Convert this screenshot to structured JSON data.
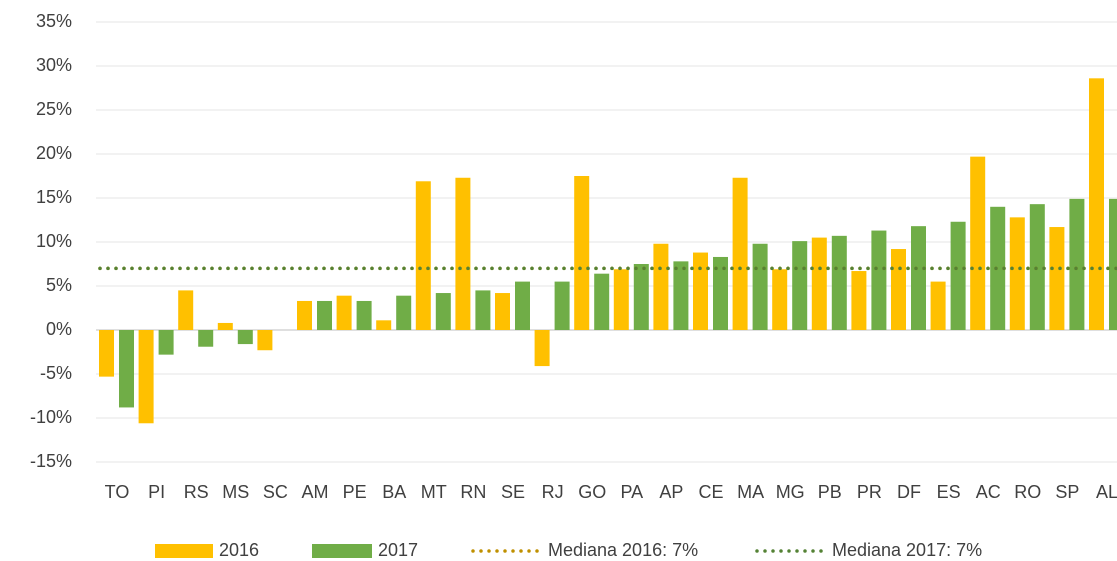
{
  "chart_data": {
    "type": "bar",
    "categories": [
      "TO",
      "PI",
      "RS",
      "MS",
      "SC",
      "AM",
      "PE",
      "BA",
      "MT",
      "RN",
      "SE",
      "RJ",
      "GO",
      "PA",
      "AP",
      "CE",
      "MA",
      "MG",
      "PB",
      "PR",
      "DF",
      "ES",
      "AC",
      "RO",
      "SP",
      "AL"
    ],
    "series": [
      {
        "name": "2016",
        "color": "#ffc000",
        "values": [
          -5.3,
          -10.6,
          4.5,
          0.8,
          -2.3,
          3.3,
          3.9,
          1.1,
          16.9,
          17.3,
          4.2,
          -4.1,
          17.5,
          6.9,
          9.8,
          8.8,
          17.3,
          6.9,
          10.5,
          6.7,
          9.2,
          5.5,
          19.7,
          12.8,
          11.7,
          28.6
        ]
      },
      {
        "name": "2017",
        "color": "#70ad47",
        "values": [
          -8.8,
          -2.8,
          -1.9,
          -1.6,
          0,
          3.3,
          3.3,
          3.9,
          4.2,
          4.5,
          5.5,
          5.5,
          6.4,
          7.5,
          7.8,
          8.3,
          9.8,
          10.1,
          10.7,
          11.3,
          11.8,
          12.3,
          14.0,
          14.3,
          14.9,
          14.9
        ]
      }
    ],
    "medians": [
      {
        "name": "Mediana 2016: 7%",
        "color": "#bf9000",
        "value": 7
      },
      {
        "name": "Mediana 2017: 7%",
        "color": "#548235",
        "value": 7
      }
    ],
    "ylim": [
      -15,
      35
    ],
    "yticks": [
      {
        "value": -15,
        "label": "-15%"
      },
      {
        "value": -10,
        "label": "-10%"
      },
      {
        "value": -5,
        "label": "-5%"
      },
      {
        "value": 0,
        "label": "0%"
      },
      {
        "value": 5,
        "label": "5%"
      },
      {
        "value": 10,
        "label": "10%"
      },
      {
        "value": 15,
        "label": "15%"
      },
      {
        "value": 20,
        "label": "20%"
      },
      {
        "value": 25,
        "label": "25%"
      },
      {
        "value": 30,
        "label": "30%"
      },
      {
        "value": 35,
        "label": "35%"
      }
    ],
    "grid": true,
    "legend": "bottom"
  }
}
